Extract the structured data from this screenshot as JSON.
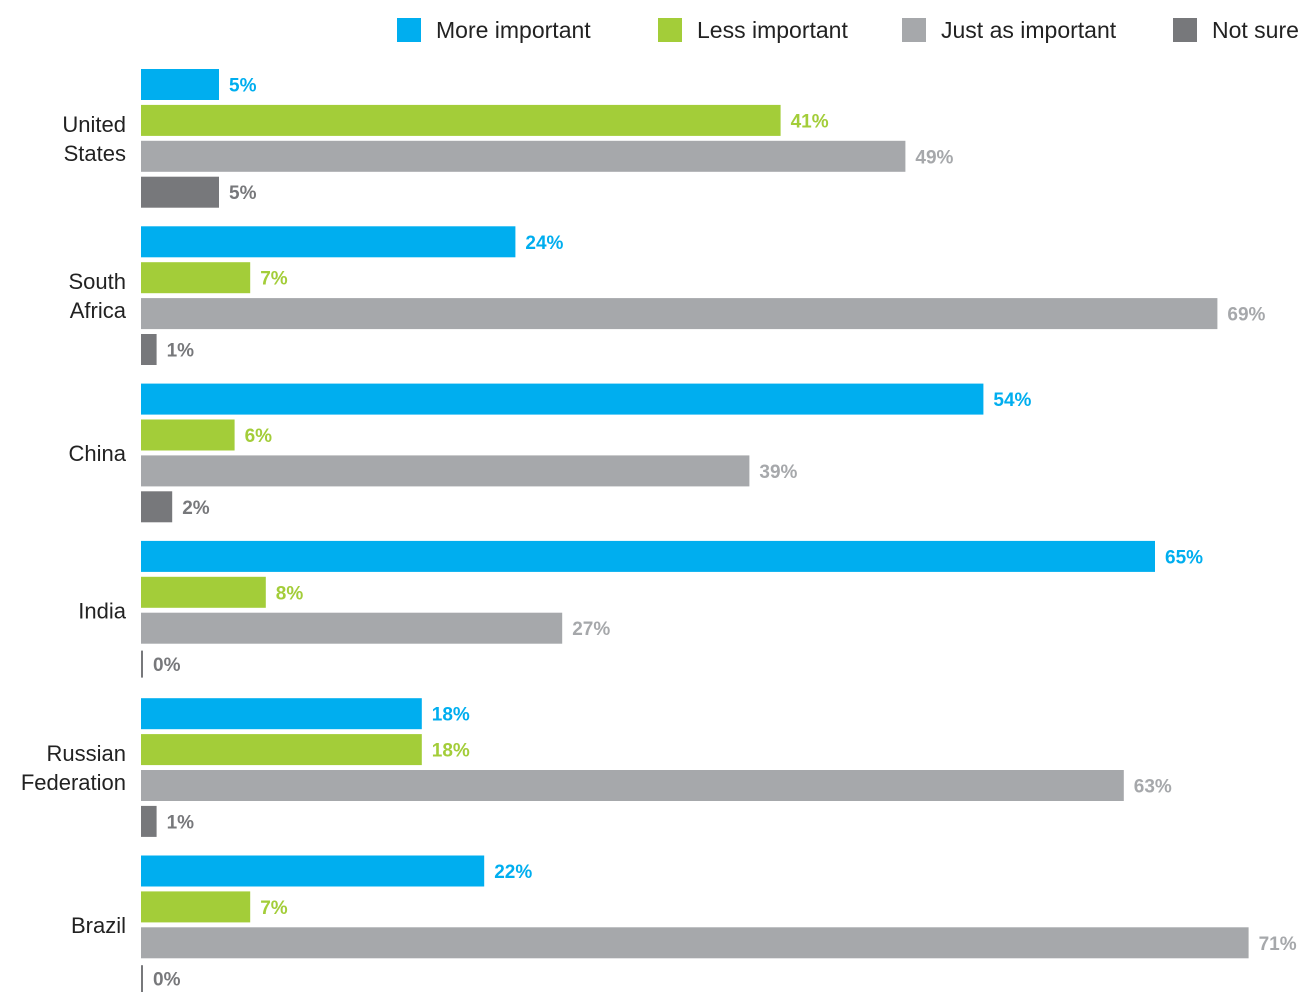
{
  "chart_data": {
    "type": "bar",
    "orientation": "horizontal",
    "grouped": true,
    "categories": [
      [
        "United",
        "States"
      ],
      [
        "South",
        "Africa"
      ],
      [
        "China"
      ],
      [
        "India"
      ],
      [
        "Russian",
        "Federation"
      ],
      [
        "Brazil"
      ]
    ],
    "series": [
      {
        "name": "More important",
        "color": "#00aeef",
        "values": [
          5,
          24,
          54,
          65,
          18,
          22
        ]
      },
      {
        "name": "Less important",
        "color": "#a3cd39",
        "values": [
          41,
          7,
          6,
          8,
          18,
          7
        ]
      },
      {
        "name": "Just as important",
        "color": "#a6a8ab",
        "values": [
          49,
          69,
          39,
          27,
          63,
          71
        ]
      },
      {
        "name": "Not sure",
        "color": "#77787b",
        "values": [
          5,
          1,
          2,
          0,
          1,
          0
        ]
      }
    ],
    "value_suffix": "%",
    "xlim": [
      0,
      71
    ],
    "legend_position": "top-right",
    "grid": false,
    "title": "",
    "xlabel": "",
    "ylabel": ""
  }
}
